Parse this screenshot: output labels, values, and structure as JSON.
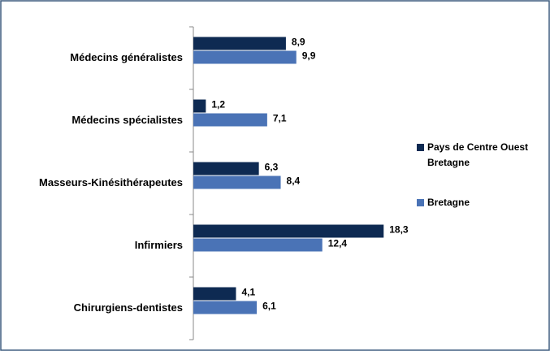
{
  "chart_data": {
    "type": "barh",
    "categories": [
      "Médecins généralistes",
      "Médecins spécialistes",
      "Masseurs-Kinésithérapeutes",
      "Infirmiers",
      "Chirurgiens-dentistes"
    ],
    "series": [
      {
        "name": "Pays de Centre Ouest Bretagne",
        "color": "#0e2a52",
        "values": [
          8.9,
          1.2,
          6.3,
          18.3,
          4.1
        ],
        "value_labels": [
          "8,9",
          "1,2",
          "6,3",
          "18,3",
          "4,1"
        ]
      },
      {
        "name": "Bretagne",
        "color": "#4a73b6",
        "values": [
          9.9,
          7.1,
          8.4,
          12.4,
          6.1
        ],
        "value_labels": [
          "9,9",
          "7,1",
          "8,4",
          "12,4",
          "6,1"
        ]
      }
    ],
    "xlim": [
      0,
      20
    ],
    "legend": "right"
  }
}
